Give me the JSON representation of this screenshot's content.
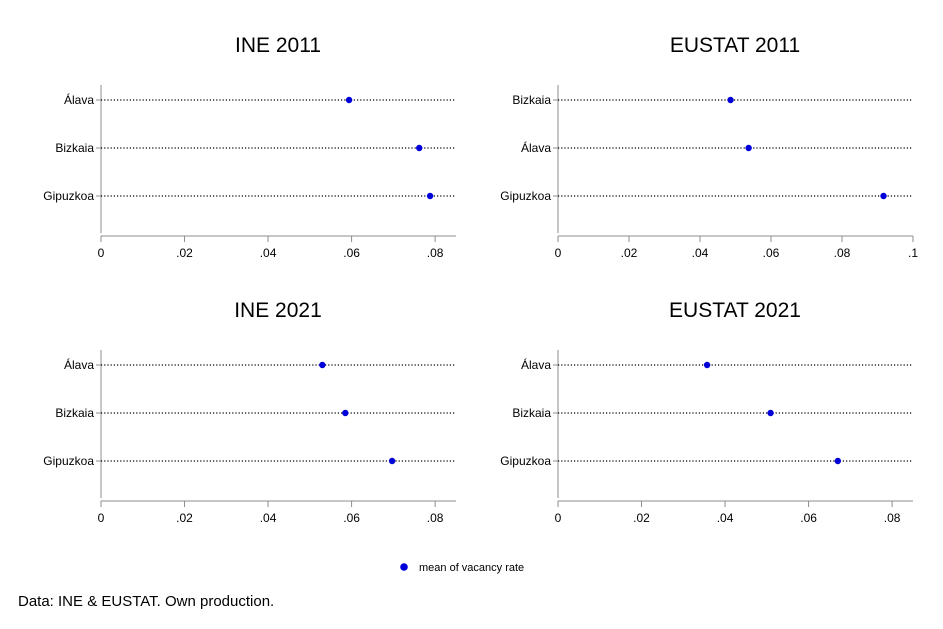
{
  "chart_data": [
    {
      "type": "scatter",
      "title": "INE 2011",
      "categories": [
        "Álava",
        "Bizkaia",
        "Gipuzkoa"
      ],
      "series": [
        {
          "name": "mean of vacancy rate",
          "values": [
            0.0594,
            0.0762,
            0.0788
          ]
        }
      ],
      "xlim": [
        0,
        0.085
      ],
      "xticks": [
        0,
        0.02,
        0.04,
        0.06,
        0.08
      ],
      "xtick_labels": [
        "0",
        ".02",
        ".04",
        ".06",
        ".08"
      ],
      "grid": "dotted horizontal lines"
    },
    {
      "type": "scatter",
      "title": "EUSTAT 2011",
      "categories": [
        "Bizkaia",
        "Álava",
        "Gipuzkoa"
      ],
      "series": [
        {
          "name": "mean of vacancy rate",
          "values": [
            0.0486,
            0.0537,
            0.0917
          ]
        }
      ],
      "xlim": [
        0,
        0.1
      ],
      "xticks": [
        0,
        0.02,
        0.04,
        0.06,
        0.08,
        0.1
      ],
      "xtick_labels": [
        "0",
        ".02",
        ".04",
        ".06",
        ".08",
        ".1"
      ],
      "grid": "dotted horizontal lines"
    },
    {
      "type": "scatter",
      "title": "INE 2021",
      "categories": [
        "Álava",
        "Bizkaia",
        "Gipuzkoa"
      ],
      "series": [
        {
          "name": "mean of vacancy rate",
          "values": [
            0.053,
            0.0585,
            0.0697
          ]
        }
      ],
      "xlim": [
        0,
        0.085
      ],
      "xticks": [
        0,
        0.02,
        0.04,
        0.06,
        0.08
      ],
      "xtick_labels": [
        "0",
        ".02",
        ".04",
        ".06",
        ".08"
      ],
      "grid": "dotted horizontal lines"
    },
    {
      "type": "scatter",
      "title": "EUSTAT 2021",
      "categories": [
        "Álava",
        "Bizkaia",
        "Gipuzkoa"
      ],
      "series": [
        {
          "name": "mean of vacancy rate",
          "values": [
            0.0357,
            0.0509,
            0.067
          ]
        }
      ],
      "xlim": [
        0,
        0.085
      ],
      "xticks": [
        0,
        0.02,
        0.04,
        0.06,
        0.08
      ],
      "xtick_labels": [
        "0",
        ".02",
        ".04",
        ".06",
        ".08"
      ],
      "grid": "dotted horizontal lines"
    }
  ],
  "legend": {
    "label": "mean of vacancy rate",
    "position": "bottom-center",
    "marker_color": "#0000d8"
  },
  "colors": {
    "marker": "#0000d8",
    "axis": "#8c8c8c",
    "grid": "#000000"
  },
  "note": "Data: INE & EUSTAT. Own production."
}
